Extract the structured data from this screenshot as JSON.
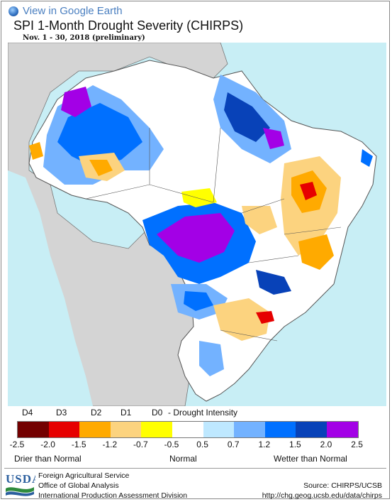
{
  "header": {
    "google_earth_link": "View in Google Earth",
    "title": "SPI 1-Month Drought Severity (CHIRPS)",
    "subtitle": "Nov. 1 - 30, 2018 (preliminary)"
  },
  "map": {
    "region": "Brazil",
    "colors": {
      "ocean": "#c8eef5",
      "land_outside": "#d4d4d4",
      "borders": "#555555",
      "D4": "#730000",
      "D3": "#e60000",
      "D2": "#ffaa00",
      "D1": "#fcd37f",
      "D0": "#ffff00",
      "normal": "#ffffff",
      "wet1": "#bee8ff",
      "wet2": "#73b2ff",
      "wet3": "#0070ff",
      "wet4": "#0842b8",
      "wet5": "#a300e6"
    }
  },
  "legend": {
    "codes": [
      "D4",
      "D3",
      "D2",
      "D1",
      "D0"
    ],
    "intensity_label": "- Drought Intensity",
    "swatches": [
      "#730000",
      "#e60000",
      "#ffaa00",
      "#fcd37f",
      "#ffff00",
      "#ffffff",
      "#bee8ff",
      "#73b2ff",
      "#0070ff",
      "#0842b8",
      "#a300e6"
    ],
    "ticks": [
      "-2.5",
      "-2.0",
      "-1.5",
      "-1.2",
      "-0.7",
      "-0.5",
      "0.5",
      "0.7",
      "1.2",
      "1.5",
      "2.0",
      "2.5"
    ],
    "drier": "Drier than Normal",
    "normal": "Normal",
    "wetter": "Wetter than Normal"
  },
  "footer": {
    "logo_text": "USDA",
    "agency_lines": [
      "Foreign Agricultural Service",
      "Office of Global Analysis",
      "International Production Assessment Division"
    ],
    "source_label": "Source: CHIRPS/UCSB",
    "source_url": "http://chg.geog.ucsb.edu/data/chirps"
  }
}
